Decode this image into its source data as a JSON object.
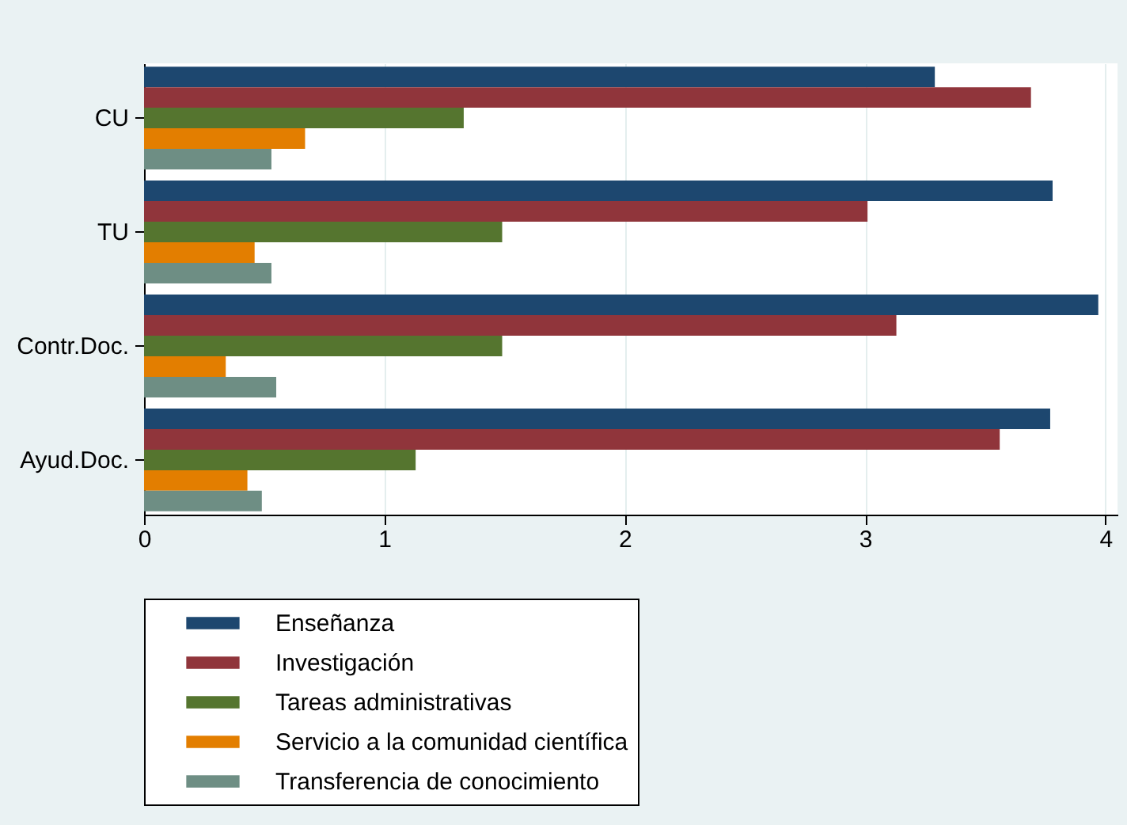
{
  "chart_data": {
    "type": "bar",
    "orientation": "horizontal",
    "categories": [
      "CU",
      "TU",
      "Contr.Doc.",
      "Ayud.Doc."
    ],
    "series": [
      {
        "name": "Enseñanza",
        "color": "#1d476f",
        "values": [
          3.29,
          3.78,
          3.97,
          3.77
        ]
      },
      {
        "name": "Investigación",
        "color": "#90353b",
        "values": [
          3.69,
          3.01,
          3.13,
          3.56
        ]
      },
      {
        "name": "Tareas administrativas",
        "color": "#55752f",
        "values": [
          1.33,
          1.49,
          1.49,
          1.13
        ]
      },
      {
        "name": "Servicio a la comunidad científica",
        "color": "#e37e00",
        "values": [
          0.67,
          0.46,
          0.34,
          0.43
        ]
      },
      {
        "name": "Transferencia de conocimiento",
        "color": "#6e8e84",
        "values": [
          0.53,
          0.53,
          0.55,
          0.49
        ]
      }
    ],
    "xlim": [
      0,
      4.05
    ],
    "xticks": [
      0,
      1,
      2,
      3,
      4
    ],
    "grid": "x",
    "legend": "bottom"
  }
}
